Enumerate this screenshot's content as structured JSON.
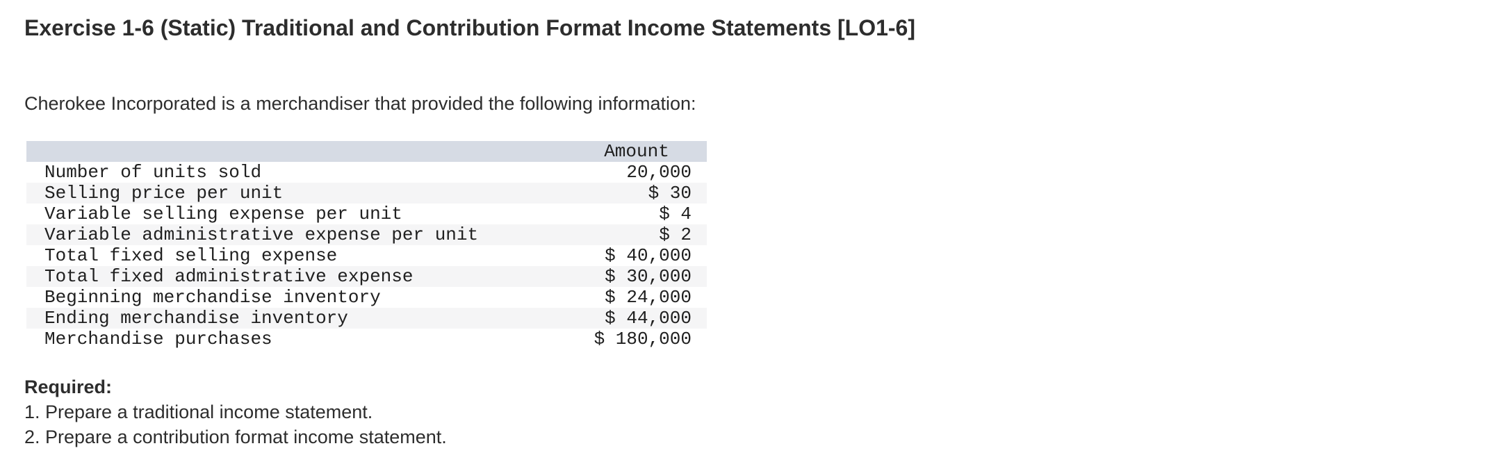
{
  "page": {
    "title": "Exercise 1-6 (Static) Traditional and Contribution Format Income Statements [LO1-6]",
    "intro": "Cherokee Incorporated is a merchandiser that provided the following information:",
    "required": {
      "heading": "Required:",
      "items": [
        "1. Prepare a traditional income statement.",
        "2. Prepare a contribution format income statement."
      ]
    }
  },
  "table": {
    "header": {
      "amount": "Amount"
    },
    "rows": [
      {
        "label": "Number of units sold",
        "amount": "20,000"
      },
      {
        "label": "Selling price per unit",
        "amount": "$ 30"
      },
      {
        "label": "Variable selling expense per unit",
        "amount": "$ 4"
      },
      {
        "label": "Variable administrative expense per unit",
        "amount": "$ 2"
      },
      {
        "label": "Total fixed selling expense",
        "amount": "$ 40,000"
      },
      {
        "label": "Total fixed administrative expense",
        "amount": "$ 30,000"
      },
      {
        "label": "Beginning merchandise inventory",
        "amount": "$ 24,000"
      },
      {
        "label": "Ending merchandise inventory",
        "amount": "$ 44,000"
      },
      {
        "label": "Merchandise purchases",
        "amount": "$ 180,000"
      }
    ]
  },
  "colors": {
    "header_bg": "#d6dbe4",
    "row_alt_bg": "#f5f5f6",
    "text": "#2d2d2d",
    "table_text": "#202020"
  }
}
